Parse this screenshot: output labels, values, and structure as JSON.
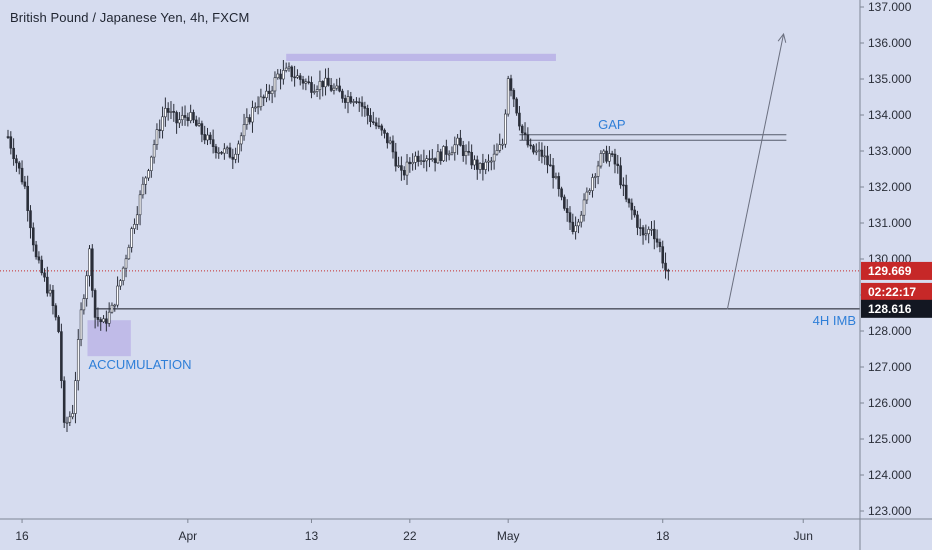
{
  "header": {
    "title": "British Pound / Japanese Yen, 4h, FXCM"
  },
  "colors": {
    "background": "#d6dcef",
    "candle": "#2a2e39",
    "axis_line": "#7f8695",
    "accent_blue": "#2f7fd8",
    "price_line": "#c62828",
    "zone_fill": "#b8b0e6",
    "badge_red": "#c62828",
    "badge_dark": "#131722"
  },
  "chart_data": {
    "type": "candlestick",
    "title": "British Pound / Japanese Yen, 4h, FXCM",
    "ylim": [
      122.8,
      137.3
    ],
    "yticks": [
      123.0,
      124.0,
      125.0,
      126.0,
      127.0,
      128.0,
      129.0,
      130.0,
      131.0,
      132.0,
      133.0,
      134.0,
      135.0,
      136.0,
      137.0
    ],
    "ytick_labels": [
      "123.000",
      "124.000",
      "125.000",
      "126.000",
      "127.000",
      "128.000",
      "129.000",
      "130.000",
      "131.000",
      "132.000",
      "133.000",
      "134.000",
      "135.000",
      "136.000",
      "137.000"
    ],
    "xticks": [
      {
        "label": "16",
        "bar": 5
      },
      {
        "label": "Apr",
        "bar": 64
      },
      {
        "label": "13",
        "bar": 108
      },
      {
        "label": "22",
        "bar": 143
      },
      {
        "label": "May",
        "bar": 178
      },
      {
        "label": "18",
        "bar": 233
      },
      {
        "label": "Jun",
        "bar": 283
      }
    ],
    "path": [
      [
        0,
        133.4
      ],
      [
        6,
        132.0
      ],
      [
        10,
        130.0
      ],
      [
        15,
        129.0
      ],
      [
        18,
        128.0
      ],
      [
        20,
        125.3
      ],
      [
        23,
        125.8
      ],
      [
        26,
        128.5
      ],
      [
        29,
        130.2
      ],
      [
        31,
        128.4
      ],
      [
        34,
        128.2
      ],
      [
        37,
        128.6
      ],
      [
        40,
        129.4
      ],
      [
        44,
        130.8
      ],
      [
        48,
        132.0
      ],
      [
        52,
        133.2
      ],
      [
        56,
        134.2
      ],
      [
        60,
        133.8
      ],
      [
        64,
        134.0
      ],
      [
        68,
        133.6
      ],
      [
        72,
        133.2
      ],
      [
        76,
        133.0
      ],
      [
        80,
        132.9
      ],
      [
        84,
        133.6
      ],
      [
        88,
        134.3
      ],
      [
        92,
        134.5
      ],
      [
        96,
        135.1
      ],
      [
        100,
        135.2
      ],
      [
        104,
        135.0
      ],
      [
        108,
        134.8
      ],
      [
        112,
        134.9
      ],
      [
        116,
        134.7
      ],
      [
        120,
        134.5
      ],
      [
        124,
        134.5
      ],
      [
        128,
        134.0
      ],
      [
        132,
        133.6
      ],
      [
        136,
        133.2
      ],
      [
        140,
        132.3
      ],
      [
        144,
        132.8
      ],
      [
        148,
        132.9
      ],
      [
        152,
        132.8
      ],
      [
        156,
        133.0
      ],
      [
        160,
        133.2
      ],
      [
        164,
        132.8
      ],
      [
        168,
        132.5
      ],
      [
        172,
        132.7
      ],
      [
        176,
        133.2
      ],
      [
        178,
        135.1
      ],
      [
        180,
        134.5
      ],
      [
        183,
        133.5
      ],
      [
        186,
        133.0
      ],
      [
        190,
        132.9
      ],
      [
        194,
        132.4
      ],
      [
        198,
        131.3
      ],
      [
        201,
        130.9
      ],
      [
        205,
        131.5
      ],
      [
        208,
        132.3
      ],
      [
        211,
        132.8
      ],
      [
        214,
        132.9
      ],
      [
        217,
        132.5
      ],
      [
        220,
        131.6
      ],
      [
        223,
        131.2
      ],
      [
        226,
        130.6
      ],
      [
        229,
        130.9
      ],
      [
        232,
        130.3
      ],
      [
        235,
        129.4
      ]
    ],
    "ohlc_note": "",
    "current_price": "129.669",
    "countdown": "02:22:17",
    "level_price": "128.616",
    "level_value": 128.616,
    "current_value": 129.669,
    "gap_upper": 133.45,
    "gap_lower": 133.3,
    "arrow_from": {
      "bar": 256,
      "price": 128.6
    },
    "arrow_to": {
      "bar": 276,
      "price": 136.25
    },
    "zones": {
      "top": {
        "bar_from": 99,
        "bar_to": 195,
        "price_top": 135.7,
        "price_bottom": 135.5
      },
      "accumulation": {
        "bar_from": 29,
        "bar_to": 43,
        "price_top": 128.3,
        "price_bottom": 127.3
      }
    },
    "annotations": {
      "gap": "GAP",
      "accumulation": "ACCUMULATION",
      "imbalance": "4H IMB"
    }
  }
}
